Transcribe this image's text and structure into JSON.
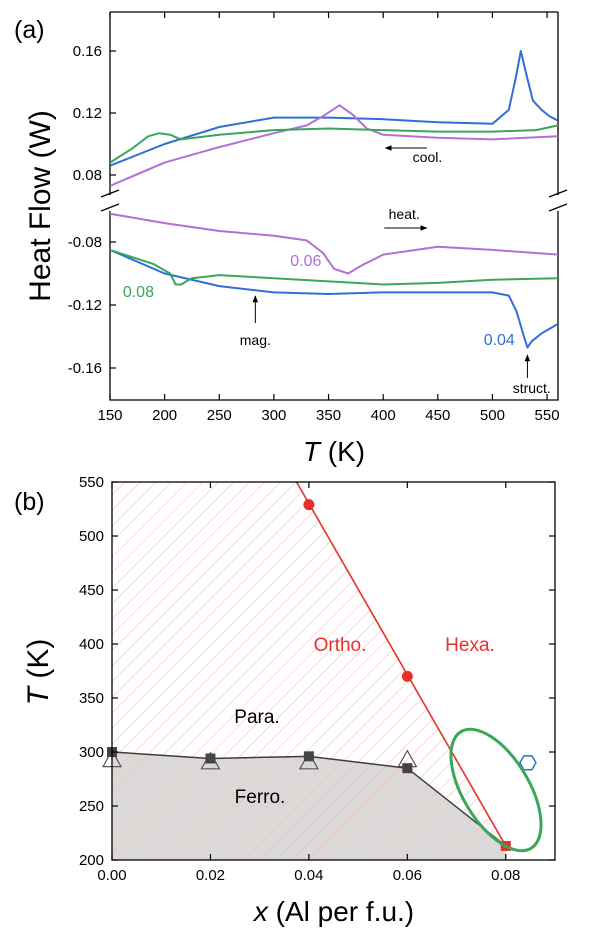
{
  "chart_data": [
    {
      "panel": "(a)",
      "type": "line",
      "xlabel_sym": "T",
      "xlabel_unit": " (K)",
      "ylabel": "Heat Flow (W)",
      "xlim": [
        150,
        560
      ],
      "xticks": [
        150,
        200,
        250,
        300,
        350,
        400,
        450,
        500,
        550
      ],
      "ylim_top": [
        0.06,
        0.17
      ],
      "ylim_bottom": [
        -0.18,
        -0.06
      ],
      "yticks_top": [
        "0.08",
        "0.12",
        "0.16"
      ],
      "yticks_bottom": [
        "-0.08",
        "-0.12",
        "-0.16"
      ],
      "axis_break": true,
      "colors": {
        "0.04": "#2f6fd6",
        "0.06": "#b070d8",
        "0.08": "#3aa65a"
      },
      "series": [
        {
          "name": "0.04",
          "branch": "cooling",
          "color": "#2f6fd6",
          "x": [
            150,
            200,
            250,
            300,
            350,
            400,
            450,
            500,
            515,
            522,
            526,
            530,
            537,
            545,
            552,
            560
          ],
          "y": [
            0.086,
            0.1,
            0.111,
            0.117,
            0.117,
            0.116,
            0.114,
            0.113,
            0.122,
            0.145,
            0.16,
            0.148,
            0.128,
            0.122,
            0.118,
            0.115
          ]
        },
        {
          "name": "0.06",
          "branch": "cooling",
          "color": "#b070d8",
          "x": [
            150,
            200,
            250,
            300,
            330,
            345,
            360,
            372,
            385,
            400,
            450,
            500,
            560
          ],
          "y": [
            0.073,
            0.088,
            0.098,
            0.107,
            0.112,
            0.118,
            0.125,
            0.119,
            0.11,
            0.106,
            0.104,
            0.103,
            0.105
          ]
        },
        {
          "name": "0.08",
          "branch": "cooling",
          "color": "#3aa65a",
          "x": [
            150,
            170,
            185,
            195,
            205,
            215,
            250,
            300,
            350,
            400,
            450,
            500,
            540,
            560
          ],
          "y": [
            0.088,
            0.097,
            0.105,
            0.107,
            0.106,
            0.103,
            0.106,
            0.109,
            0.11,
            0.109,
            0.108,
            0.108,
            0.109,
            0.112
          ]
        },
        {
          "name": "0.04",
          "branch": "heating",
          "color": "#2f6fd6",
          "x": [
            150,
            200,
            250,
            300,
            350,
            400,
            450,
            500,
            515,
            522,
            528,
            532,
            536,
            545,
            555,
            560
          ],
          "y": [
            -0.085,
            -0.1,
            -0.108,
            -0.112,
            -0.113,
            -0.112,
            -0.112,
            -0.112,
            -0.114,
            -0.124,
            -0.138,
            -0.147,
            -0.143,
            -0.138,
            -0.134,
            -0.132
          ]
        },
        {
          "name": "0.06",
          "branch": "heating",
          "color": "#b070d8",
          "x": [
            150,
            200,
            250,
            300,
            330,
            345,
            355,
            368,
            380,
            400,
            450,
            500,
            560
          ],
          "y": [
            -0.062,
            -0.068,
            -0.073,
            -0.076,
            -0.079,
            -0.087,
            -0.097,
            -0.1,
            -0.095,
            -0.088,
            -0.083,
            -0.085,
            -0.088
          ]
        },
        {
          "name": "0.08",
          "branch": "heating",
          "color": "#3aa65a",
          "x": [
            150,
            190,
            205,
            210,
            215,
            225,
            250,
            300,
            350,
            400,
            450,
            500,
            560
          ],
          "y": [
            -0.085,
            -0.094,
            -0.1,
            -0.107,
            -0.107,
            -0.103,
            -0.101,
            -0.103,
            -0.105,
            -0.107,
            -0.106,
            -0.104,
            -0.103
          ]
        }
      ],
      "annotations": {
        "cool": "cool.",
        "heat": "heat.",
        "mag": "mag.",
        "struct": "struct.",
        "label_004": "0.04",
        "label_006": "0.06",
        "label_008": "0.08"
      }
    },
    {
      "panel": "(b)",
      "type": "scatter",
      "xlabel_sym": "x",
      "xlabel_unit": " (Al per f.u.)",
      "ylabel_sym": "T",
      "ylabel_unit": " (K)",
      "xlim": [
        0.0,
        0.09
      ],
      "ylim": [
        200,
        550
      ],
      "xticks": [
        "0.00",
        "0.02",
        "0.04",
        "0.06",
        "0.08"
      ],
      "yticks": [
        "200",
        "250",
        "300",
        "350",
        "400",
        "450",
        "500",
        "550"
      ],
      "magnetic_squares": {
        "x": [
          0.0,
          0.02,
          0.04,
          0.06,
          0.08
        ],
        "y": [
          300,
          294,
          296,
          285,
          213
        ]
      },
      "magnetic_triangles": {
        "x": [
          0.0,
          0.02,
          0.04,
          0.06
        ],
        "y": [
          292,
          290,
          290,
          292
        ]
      },
      "structural_circles": {
        "x": [
          0.04,
          0.06,
          0.08
        ],
        "y": [
          529,
          370,
          213
        ]
      },
      "structural_line": {
        "x": [
          0.0375,
          0.08
        ],
        "y": [
          550,
          213
        ]
      },
      "hexagon_point": {
        "x": 0.0845,
        "y": 290
      },
      "colors": {
        "structural": "#e8312b",
        "magnetic": "#3c3c3c",
        "hatch": "#f4b3b0",
        "ferro_fill": "#d6d2d2",
        "ellipse": "#3aa65a",
        "hexagon": "#2f6fd6"
      },
      "regions": {
        "ortho": "Ortho.",
        "hexa": "Hexa.",
        "para": "Para.",
        "ferro": "Ferro."
      }
    }
  ]
}
